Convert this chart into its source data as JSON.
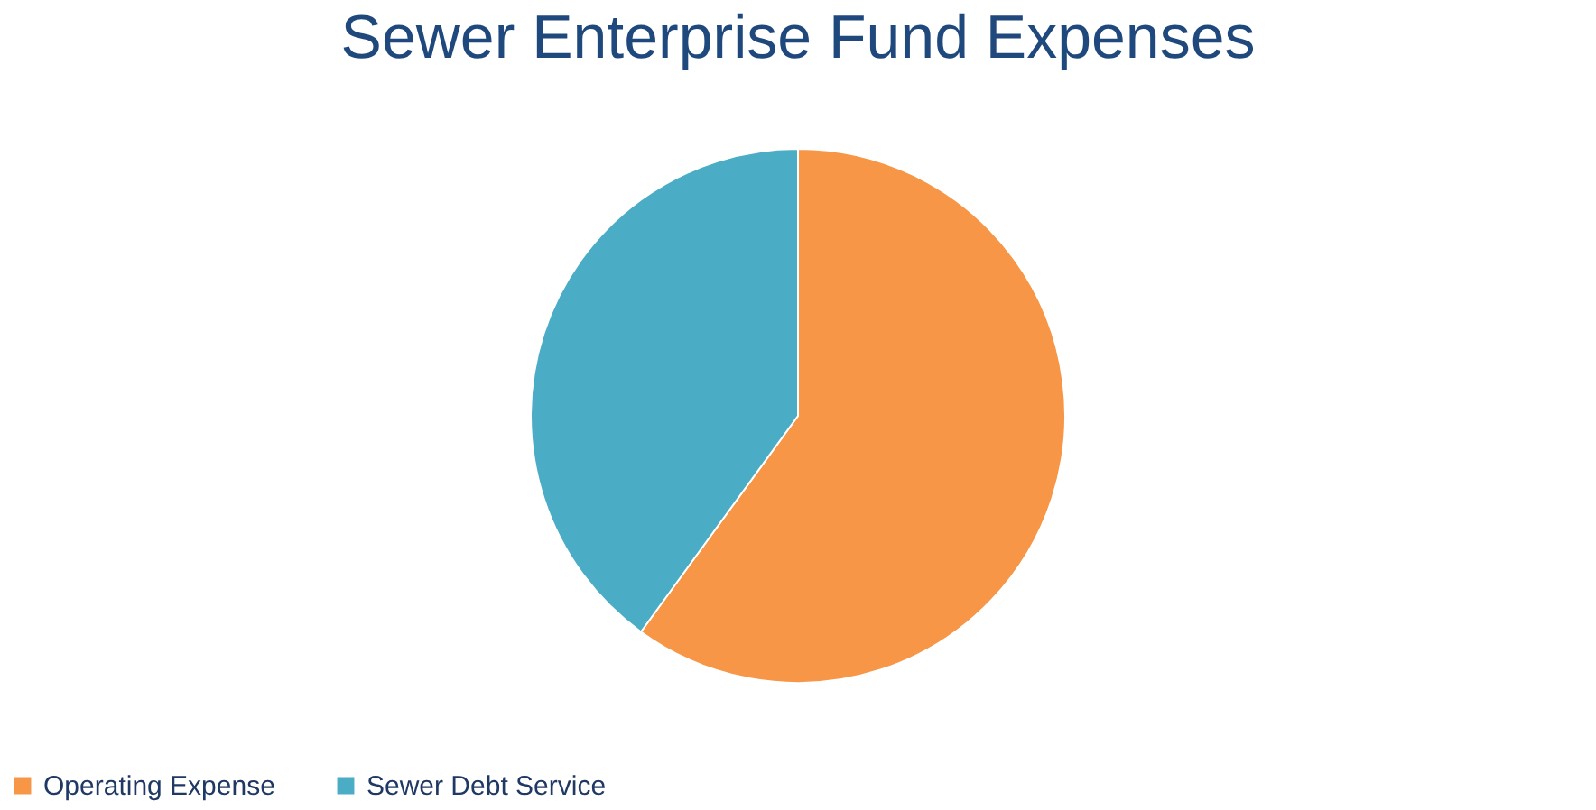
{
  "chart_data": {
    "type": "pie",
    "title": "Sewer Enterprise Fund Expenses",
    "categories": [
      "Operating Expense",
      "Sewer Debt Service"
    ],
    "values": [
      60,
      40
    ],
    "colors": [
      "#f79646",
      "#4bacc6"
    ],
    "legend": "bottom"
  }
}
